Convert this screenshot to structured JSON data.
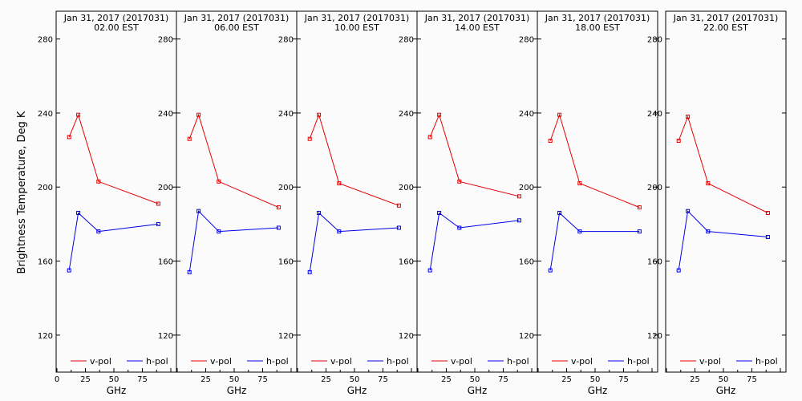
{
  "chart_data": {
    "type": "line",
    "ylabel": "Brightness Temperature, Deg K",
    "xlabel": "GHz",
    "ylim": [
      100,
      295
    ],
    "yticks": [
      120,
      160,
      200,
      240,
      280
    ],
    "xticks": [
      0,
      25,
      50,
      75,
      100
    ],
    "xlim": [
      0,
      100
    ],
    "grid": false,
    "legend_placement": "bottom",
    "colors": {
      "v_pol": "#e60000",
      "h_pol": "#0000e6",
      "frame": "#000000",
      "background": "#fbfbfb"
    },
    "panels": [
      {
        "title": "Jan 31, 2017 (2017031)",
        "subtitle": "02.00 EST",
        "series": [
          {
            "name": "v-pol",
            "x": [
              10.7,
              18.7,
              36.5,
              89.0
            ],
            "y": [
              227,
              239,
              203,
              191
            ]
          },
          {
            "name": "h-pol",
            "x": [
              10.7,
              18.7,
              36.5,
              89.0
            ],
            "y": [
              155,
              186,
              176,
              180
            ]
          }
        ]
      },
      {
        "title": "Jan 31, 2017 (2017031)",
        "subtitle": "06.00 EST",
        "series": [
          {
            "name": "v-pol",
            "x": [
              10.7,
              18.7,
              36.5,
              89.0
            ],
            "y": [
              226,
              239,
              203,
              189
            ]
          },
          {
            "name": "h-pol",
            "x": [
              10.7,
              18.7,
              36.5,
              89.0
            ],
            "y": [
              154,
              187,
              176,
              178
            ]
          }
        ]
      },
      {
        "title": "Jan 31, 2017 (2017031)",
        "subtitle": "10.00 EST",
        "series": [
          {
            "name": "v-pol",
            "x": [
              10.7,
              18.7,
              36.5,
              89.0
            ],
            "y": [
              226,
              239,
              202,
              190
            ]
          },
          {
            "name": "h-pol",
            "x": [
              10.7,
              18.7,
              36.5,
              89.0
            ],
            "y": [
              154,
              186,
              176,
              178
            ]
          }
        ]
      },
      {
        "title": "Jan 31, 2017 (2017031)",
        "subtitle": "14.00 EST",
        "series": [
          {
            "name": "v-pol",
            "x": [
              10.7,
              18.7,
              36.5,
              89.0
            ],
            "y": [
              227,
              239,
              203,
              195
            ]
          },
          {
            "name": "h-pol",
            "x": [
              10.7,
              18.7,
              36.5,
              89.0
            ],
            "y": [
              155,
              186,
              178,
              182
            ]
          }
        ]
      },
      {
        "title": "Jan 31, 2017 (2017031)",
        "subtitle": "18.00 EST",
        "series": [
          {
            "name": "v-pol",
            "x": [
              10.7,
              18.7,
              36.5,
              89.0
            ],
            "y": [
              225,
              239,
              202,
              189
            ]
          },
          {
            "name": "h-pol",
            "x": [
              10.7,
              18.7,
              36.5,
              89.0
            ],
            "y": [
              155,
              186,
              176,
              176
            ]
          }
        ]
      },
      {
        "title": "Jan 31, 2017 (2017031)",
        "subtitle": "22.00 EST",
        "series": [
          {
            "name": "v-pol",
            "x": [
              10.7,
              18.7,
              36.5,
              89.0
            ],
            "y": [
              225,
              238,
              202,
              186
            ]
          },
          {
            "name": "h-pol",
            "x": [
              10.7,
              18.7,
              36.5,
              89.0
            ],
            "y": [
              155,
              187,
              176,
              173
            ]
          }
        ]
      }
    ]
  }
}
